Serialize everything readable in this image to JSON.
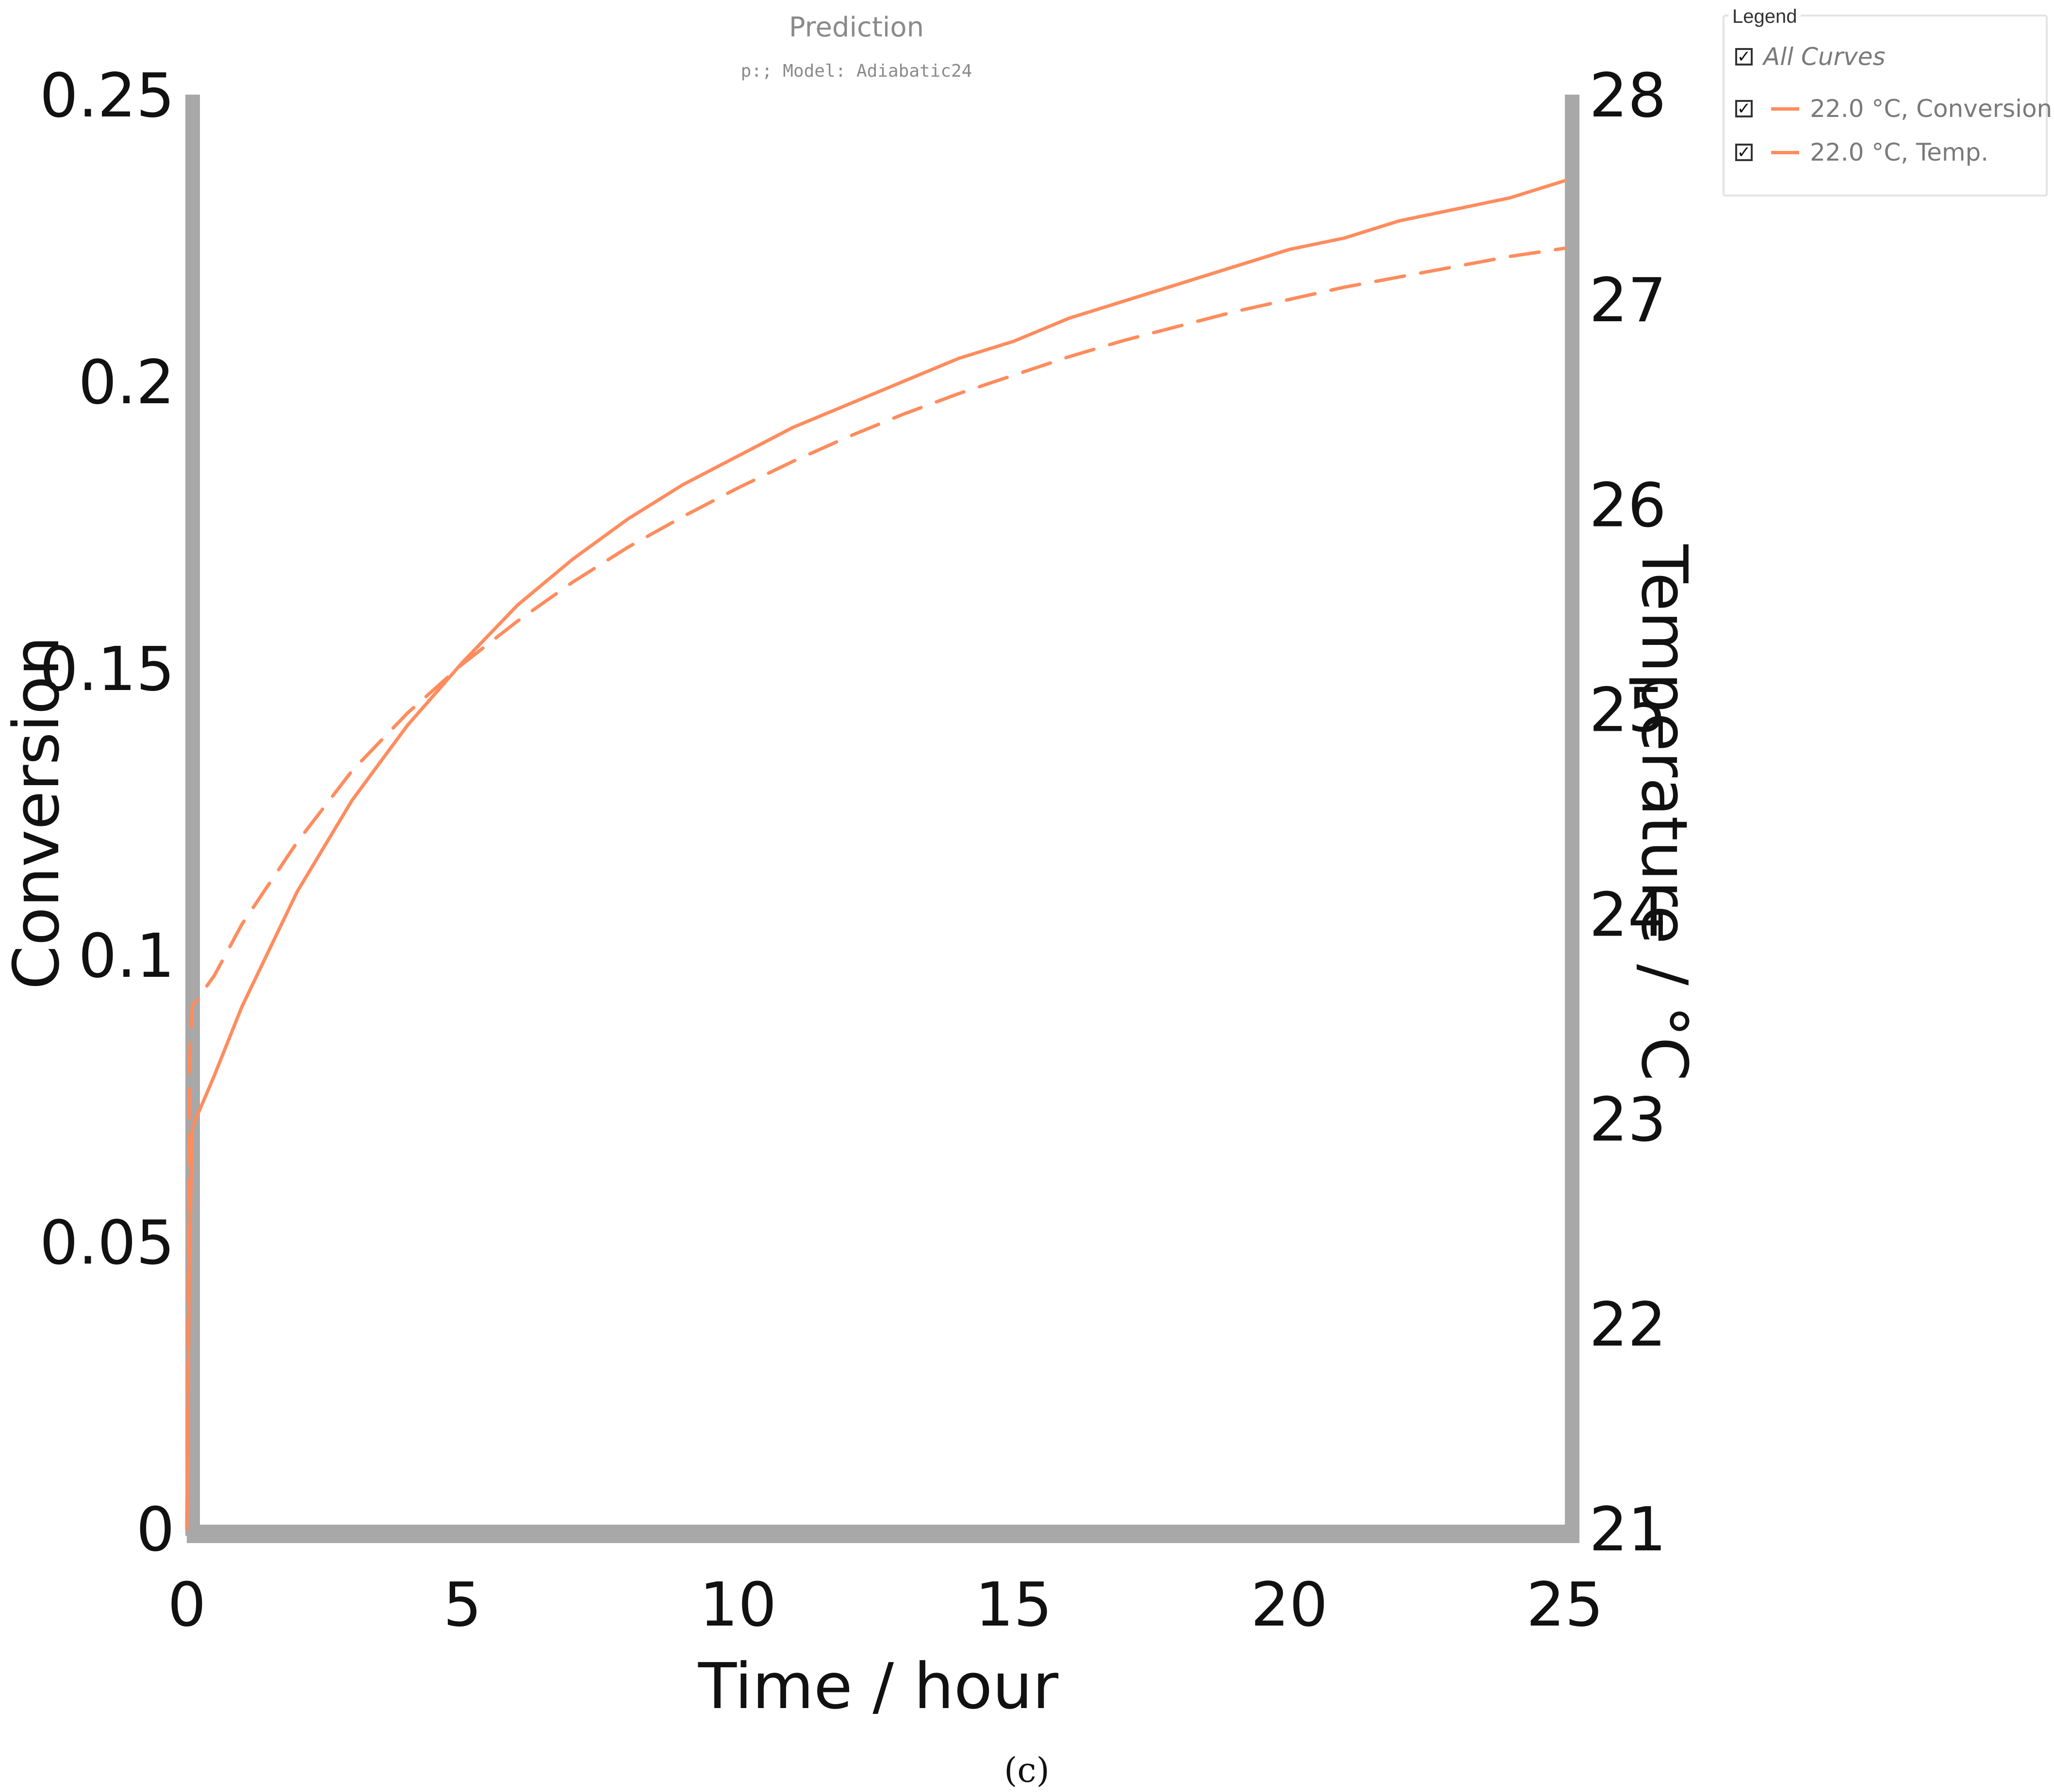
{
  "chart_data": {
    "type": "line",
    "title": "Prediction",
    "subtitle": "p:; Model: Adiabatic24",
    "xlabel": "Time / hour",
    "ylabel": "Conversion",
    "y2label": "Temperature / °C",
    "xlim": [
      0,
      25
    ],
    "ylim": [
      0,
      0.25
    ],
    "y2lim": [
      21,
      28
    ],
    "xticks": [
      "0",
      "5",
      "10",
      "15",
      "20",
      "25"
    ],
    "xtick_values": [
      0,
      5,
      10,
      15,
      20,
      25
    ],
    "yticks": [
      "0",
      "0.05",
      "0.1",
      "0.15",
      "0.2",
      "0.25"
    ],
    "ytick_values": [
      0,
      0.05,
      0.1,
      0.15,
      0.2,
      0.25
    ],
    "y2ticks": [
      "21",
      "22",
      "23",
      "24",
      "25",
      "26",
      "27",
      "28"
    ],
    "y2tick_values": [
      21,
      22,
      23,
      24,
      25,
      26,
      27,
      28
    ],
    "grid": false,
    "legend_position": "top-right",
    "series": [
      {
        "name": "22.0 °C, Conversion",
        "axis": "left",
        "style": "solid",
        "color": "#ff8c5e",
        "x": [
          0,
          0.05,
          0.1,
          0.5,
          1,
          2,
          3,
          4,
          5,
          6,
          7,
          8,
          9,
          10,
          11,
          12,
          13,
          14,
          15,
          16,
          17,
          18,
          19,
          20,
          21,
          22,
          23,
          24,
          25
        ],
        "y": [
          0,
          0.05,
          0.07,
          0.079,
          0.091,
          0.111,
          0.127,
          0.14,
          0.151,
          0.161,
          0.169,
          0.176,
          0.182,
          0.187,
          0.192,
          0.196,
          0.2,
          0.204,
          0.207,
          0.211,
          0.214,
          0.217,
          0.22,
          0.223,
          0.225,
          0.228,
          0.23,
          0.232,
          0.235
        ]
      },
      {
        "name": "22.0 °C, Temp.",
        "axis": "right",
        "style": "dashed",
        "color": "#ff8c5e",
        "x": [
          0,
          0.05,
          0.1,
          0.5,
          1,
          2,
          3,
          4,
          5,
          6,
          7,
          8,
          9,
          10,
          11,
          12,
          13,
          14,
          15,
          16,
          17,
          18,
          19,
          20,
          21,
          22,
          23,
          24,
          25
        ],
        "y": [
          21,
          23.3,
          23.55,
          23.7,
          23.95,
          24.35,
          24.7,
          24.98,
          25.22,
          25.43,
          25.62,
          25.79,
          25.94,
          26.08,
          26.21,
          26.33,
          26.44,
          26.54,
          26.63,
          26.72,
          26.8,
          26.87,
          26.94,
          27.0,
          27.06,
          27.11,
          27.16,
          27.21,
          27.25
        ]
      }
    ]
  },
  "legend": {
    "title": "Legend",
    "all_label": "All Curves",
    "check_glyph": "✓"
  },
  "caption": "(c)"
}
